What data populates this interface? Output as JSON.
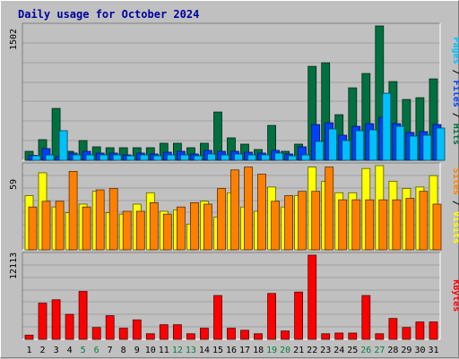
{
  "chart_data": {
    "type": "bar",
    "title": "Daily usage for October 2024",
    "categories": [
      "1",
      "2",
      "3",
      "4",
      "5",
      "6",
      "7",
      "8",
      "9",
      "10",
      "11",
      "12",
      "13",
      "14",
      "15",
      "16",
      "17",
      "18",
      "19",
      "20",
      "21",
      "22",
      "23",
      "24",
      "25",
      "26",
      "27",
      "28",
      "29",
      "30",
      "31"
    ],
    "weekend_days": [
      "5",
      "6",
      "12",
      "13",
      "19",
      "20",
      "26",
      "27"
    ],
    "colors": {
      "hits": "#007040",
      "files": "#0040ff",
      "pages": "#00c0ff",
      "visits": "#ffff00",
      "sites": "#ff8000",
      "kbytes": "#ff0000",
      "weekday_label": "#000000",
      "weekend_label": "#008040",
      "title": "#0000a0"
    },
    "panels": [
      {
        "id": "hits-files-pages",
        "ymax": 1502,
        "ymax_label": "1502",
        "label_parts": [
          {
            "text": "Pages",
            "color": "#00c0ff"
          },
          {
            "text": " / ",
            "color": "#000000"
          },
          {
            "text": "Files",
            "color": "#0040ff"
          },
          {
            "text": " / ",
            "color": "#000000"
          },
          {
            "text": "Hits",
            "color": "#007040"
          }
        ],
        "series": [
          {
            "name": "Hits",
            "values": [
              100,
              230,
              580,
              100,
              220,
              150,
              140,
              140,
              140,
              140,
              190,
              190,
              140,
              190,
              540,
              250,
              180,
              120,
              390,
              100,
              180,
              1050,
              1090,
              510,
              810,
              970,
              1502,
              880,
              680,
              700,
              910
            ]
          },
          {
            "name": "Files",
            "values": [
              55,
              130,
              40,
              80,
              100,
              80,
              80,
              60,
              80,
              70,
              90,
              100,
              70,
              110,
              100,
              100,
              90,
              80,
              110,
              70,
              150,
              400,
              420,
              280,
              380,
              410,
              480,
              410,
              310,
              320,
              400
            ]
          },
          {
            "name": "Pages",
            "values": [
              50,
              60,
              330,
              60,
              60,
              60,
              60,
              50,
              60,
              50,
              60,
              60,
              50,
              70,
              60,
              70,
              60,
              60,
              80,
              50,
              60,
              210,
              350,
              220,
              330,
              340,
              750,
              380,
              270,
              280,
              360
            ]
          }
        ]
      },
      {
        "id": "visits-sites",
        "ymax": 59,
        "ymax_label": "59",
        "label_parts": [
          {
            "text": "Sites",
            "color": "#ff8000"
          },
          {
            "text": " / ",
            "color": "#000000"
          },
          {
            "text": "Visits",
            "color": "#ffff00"
          }
        ],
        "series": [
          {
            "name": "Visits",
            "values": [
              38,
              54,
              30,
              26,
              32,
              41,
              26,
              25,
              32,
              40,
              27,
              28,
              18,
              34,
              23,
              40,
              30,
              27,
              44,
              30,
              38,
              58,
              48,
              40,
              40,
              57,
              59,
              48,
              43,
              44,
              52
            ]
          },
          {
            "name": "Sites",
            "values": [
              30,
              34,
              34,
              55,
              30,
              42,
              43,
              27,
              27,
              33,
              25,
              30,
              33,
              32,
              43,
              56,
              58,
              53,
              34,
              38,
              41,
              41,
              58,
              35,
              35,
              35,
              35,
              35,
              36,
              41,
              32
            ]
          }
        ]
      },
      {
        "id": "kbytes",
        "ymax": 12113,
        "ymax_label": "12113",
        "label_parts": [
          {
            "text": "KBytes",
            "color": "#ff0000"
          }
        ],
        "series": [
          {
            "name": "KBytes",
            "values": [
              600,
              5200,
              5700,
              3600,
              6900,
              1700,
              3400,
              1600,
              2800,
              800,
              2100,
              2100,
              800,
              1600,
              6300,
              1600,
              1300,
              800,
              6600,
              1200,
              6800,
              12113,
              800,
              900,
              900,
              6300,
              800,
              3000,
              1700,
              2500,
              2500
            ]
          }
        ]
      }
    ]
  }
}
